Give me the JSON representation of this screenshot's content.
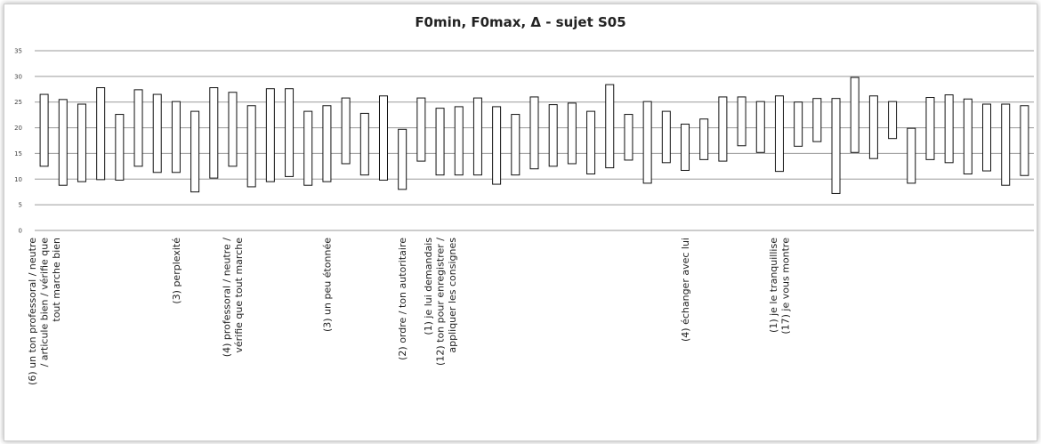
{
  "chart_data": {
    "type": "bar",
    "title": "F0min, F0max, Δ - sujet S05",
    "xlabel": "",
    "ylabel": "",
    "ylim": [
      0,
      35
    ],
    "yticks": [
      0,
      5,
      10,
      15,
      20,
      25,
      30,
      35
    ],
    "grid": true,
    "legend": "none",
    "bar_fill": "#ffffff",
    "bar_stroke": "#111111",
    "grid_color": "#9a9a9a",
    "series": [
      {
        "name": "",
        "low": [
          12.5,
          8.8,
          9.5,
          9.9,
          9.8,
          12.5,
          11.3,
          11.3,
          7.5,
          10.2,
          12.5,
          8.5,
          9.5,
          10.5,
          8.8,
          9.5,
          13.0,
          10.8,
          9.8,
          8.0,
          13.5,
          10.8,
          10.8,
          10.8,
          9.0,
          10.8,
          12.0,
          12.5,
          13.0,
          11.0,
          12.2,
          13.7,
          9.2,
          13.2,
          11.7,
          13.8,
          13.5,
          16.5,
          15.2,
          11.5,
          16.4,
          17.3,
          7.2,
          15.2,
          14.0,
          17.9,
          9.2,
          13.8,
          13.2,
          11.0,
          11.6,
          8.8,
          10.7
        ],
        "high": [
          26.5,
          25.5,
          24.6,
          27.8,
          22.6,
          27.4,
          26.5,
          25.1,
          23.2,
          27.8,
          26.9,
          24.3,
          27.6,
          27.6,
          23.2,
          24.3,
          25.8,
          22.8,
          26.2,
          19.7,
          25.8,
          23.8,
          24.1,
          25.8,
          24.1,
          22.6,
          26.0,
          24.5,
          24.8,
          23.2,
          28.4,
          22.6,
          25.1,
          23.2,
          20.7,
          21.7,
          26.0,
          26.0,
          25.1,
          26.2,
          25.0,
          25.7,
          25.7,
          29.8,
          26.2,
          25.1,
          19.9,
          25.9,
          26.4,
          25.6,
          24.6,
          24.6,
          24.3
        ]
      }
    ],
    "category_labels": [
      {
        "index": 0,
        "lines": [
          "(6) un ton professoral / neutre",
          "/ articule bien / vérifie que",
          "tout marche bien"
        ]
      },
      {
        "index": 7,
        "lines": [
          "(3) perplexité"
        ]
      },
      {
        "index": 10,
        "lines": [
          "(4) professoral / neutre /",
          "vérifie que tout marche"
        ]
      },
      {
        "index": 15,
        "lines": [
          "(3) un peu étonnée"
        ]
      },
      {
        "index": 19,
        "lines": [
          "(2) ordre / ton autoritaire"
        ]
      },
      {
        "index": 21,
        "lines": [
          "(1) je lui demandais",
          "(12) ton pour enregistrer /",
          "appliquer les consignes"
        ]
      },
      {
        "index": 34,
        "lines": [
          "(4) échanger avec lui"
        ]
      },
      {
        "index": 39,
        "lines": [
          "(1) je le tranquillise",
          "(17) je vous montre"
        ]
      }
    ]
  }
}
